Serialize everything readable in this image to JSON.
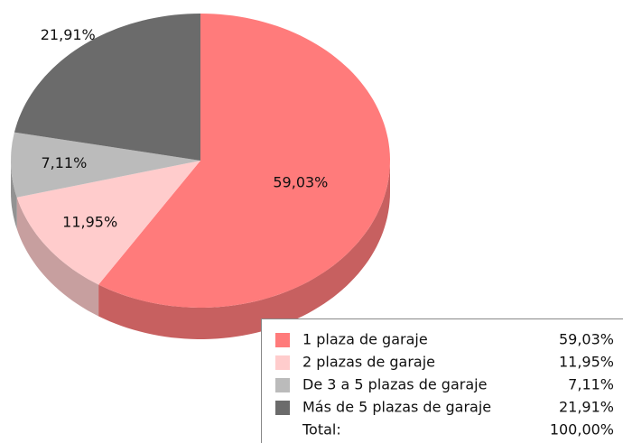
{
  "chart_data": {
    "type": "pie3d",
    "categories": [
      "1 plaza de garaje",
      "2 plazas de garaje",
      "De 3 a 5 plazas de garaje",
      "Más de 5 plazas de garaje"
    ],
    "values": [
      59.03,
      11.95,
      7.11,
      21.91
    ],
    "value_labels": [
      "59,03%",
      "11,95%",
      "7,11%",
      "21,91%"
    ],
    "colors": [
      "#ff7b7b",
      "#ffcccc",
      "#bbbbbb",
      "#6b6b6b"
    ],
    "total_label": "Total:",
    "total": {
      "value": 100,
      "label": "100,00%"
    }
  }
}
